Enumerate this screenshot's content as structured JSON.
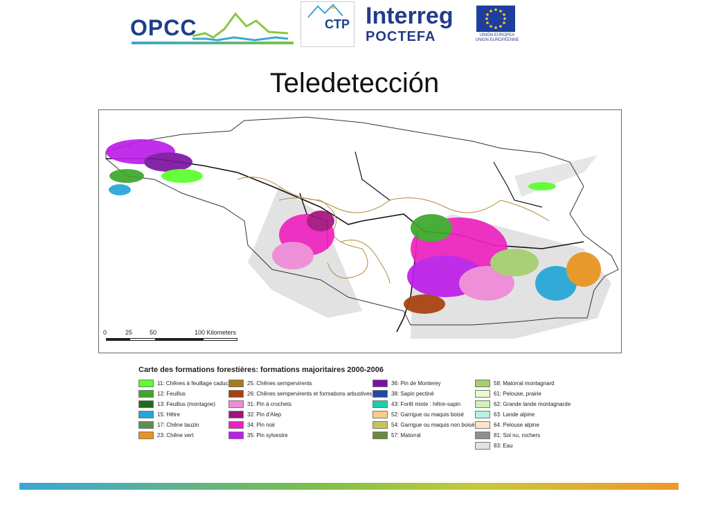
{
  "header": {
    "opcc_logo_text": "OPCC",
    "ctp_logo_text": "CTP",
    "ctp_logo_subtitle": "",
    "interreg_logo_text": "Interreg",
    "poctefa_logo_text": "POCTEFA",
    "eu_label_es": "UNIÓN EUROPEA",
    "eu_label_fr": "UNION EUROPÉENNE"
  },
  "slide": {
    "title": "Teledetección"
  },
  "map": {
    "scale_labels": [
      "0",
      "25",
      "50",
      "100 Kilometers"
    ]
  },
  "legend": {
    "title": "Carte des formations forestières: formations majoritaires 2000-2006",
    "columns": [
      [
        {
          "label": "11: Chênes à feuillage caduc",
          "color": "#5aff2c"
        },
        {
          "label": "12: Feuillus",
          "color": "#3da82a"
        },
        {
          "label": "13: Feuillus (montagne)",
          "color": "#1f6b1d"
        },
        {
          "label": "15: Hêtre",
          "color": "#22a6d8"
        },
        {
          "label": "17: Chêne tauzin",
          "color": "#5c8f55"
        },
        {
          "label": "23: Chêne vert",
          "color": "#e8931c"
        }
      ],
      [
        {
          "label": "25: Chênes sempervirents",
          "color": "#a87b1c"
        },
        {
          "label": "26: Chênes sempervirents et formations arbustives",
          "color": "#a8400e"
        },
        {
          "label": "31: Pin à crochets",
          "color": "#f08ad8"
        },
        {
          "label": "32: Pin d'Alep",
          "color": "#a3137f"
        },
        {
          "label": "34: Pin noir",
          "color": "#ee22c0"
        },
        {
          "label": "35: Pin sylvestre",
          "color": "#bd1eea"
        }
      ],
      [
        {
          "label": "36: Pin de Monterey",
          "color": "#7a14a0"
        },
        {
          "label": "38: Sapin pectiné",
          "color": "#1d4aa8"
        },
        {
          "label": "43: Forêt mixte : hêtre-sapin",
          "color": "#18d0a5"
        },
        {
          "label": "52: Garrigue ou maquis boisé",
          "color": "#f7cf86"
        },
        {
          "label": "54: Garrigue ou maquis non boisé",
          "color": "#c7c45a"
        },
        {
          "label": "57: Matorral",
          "color": "#6a8a3e"
        }
      ],
      [
        {
          "label": "58: Matorral montagnard",
          "color": "#a6cf6e"
        },
        {
          "label": "61: Pelouse, prairie",
          "color": "#e9f9c9"
        },
        {
          "label": "62: Grande lande montagnarde",
          "color": "#cdf2b6"
        },
        {
          "label": "63: Lande alpine",
          "color": "#b7f2e2"
        },
        {
          "label": "64: Pelouse alpine",
          "color": "#fbe3c4"
        },
        {
          "label": "81: Sol nu, rochers",
          "color": "#8e8e8e"
        },
        {
          "label": "83: Eau",
          "color": "#e3e3e3"
        }
      ]
    ]
  }
}
